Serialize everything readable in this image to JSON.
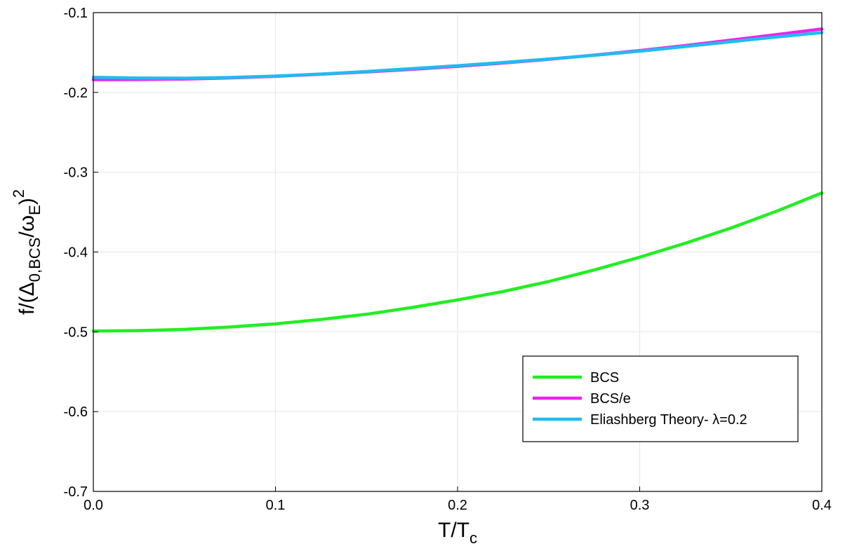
{
  "chart_data": {
    "type": "line",
    "xlabel": {
      "main": "T/T",
      "sub": "c"
    },
    "ylabel": {
      "prefix": "f/(",
      "delta": "Δ",
      "sub1": "0,BCS",
      "mid": "/ω",
      "sub2": "E",
      "close": ")",
      "sup": "2"
    },
    "xlim": [
      0.0,
      0.4
    ],
    "ylim": [
      -0.7,
      -0.1
    ],
    "xticks": [
      0.0,
      0.1,
      0.2,
      0.3,
      0.4
    ],
    "xtick_labels": [
      "0.0",
      "0.1",
      "0.2",
      "0.3",
      "0.4"
    ],
    "yticks": [
      -0.7,
      -0.6,
      -0.5,
      -0.4,
      -0.3,
      -0.2,
      -0.1
    ],
    "ytick_labels": [
      "-0.7",
      "-0.6",
      "-0.5",
      "-0.4",
      "-0.3",
      "-0.2",
      "-0.1"
    ],
    "grid": true,
    "legend_position": "lower-right",
    "series": [
      {
        "name": "BCS",
        "color": "#22ee22",
        "x": [
          0.0,
          0.025,
          0.05,
          0.075,
          0.1,
          0.125,
          0.15,
          0.175,
          0.2,
          0.225,
          0.25,
          0.275,
          0.3,
          0.325,
          0.35,
          0.375,
          0.4
        ],
        "y": [
          -0.499,
          -0.4985,
          -0.497,
          -0.494,
          -0.49,
          -0.4845,
          -0.478,
          -0.4695,
          -0.46,
          -0.4495,
          -0.437,
          -0.4225,
          -0.4065,
          -0.389,
          -0.37,
          -0.349,
          -0.326
        ]
      },
      {
        "name": "BCS/e",
        "color": "#ee22ee",
        "x": [
          0.0,
          0.025,
          0.05,
          0.075,
          0.1,
          0.125,
          0.15,
          0.175,
          0.2,
          0.225,
          0.25,
          0.275,
          0.3,
          0.325,
          0.35,
          0.375,
          0.4
        ],
        "y": [
          -0.184,
          -0.1838,
          -0.1832,
          -0.1818,
          -0.1798,
          -0.1772,
          -0.1743,
          -0.171,
          -0.1673,
          -0.1632,
          -0.1585,
          -0.1532,
          -0.1475,
          -0.1413,
          -0.1345,
          -0.1275,
          -0.1205
        ]
      },
      {
        "name": "Eliashberg Theory- λ=0.2",
        "color": "#22bbee",
        "x": [
          0.0,
          0.025,
          0.05,
          0.075,
          0.1,
          0.125,
          0.15,
          0.175,
          0.2,
          0.225,
          0.25,
          0.275,
          0.3,
          0.325,
          0.35,
          0.375,
          0.4
        ],
        "y": [
          -0.181,
          -0.182,
          -0.1822,
          -0.1813,
          -0.1795,
          -0.177,
          -0.1738,
          -0.1702,
          -0.1665,
          -0.1625,
          -0.1582,
          -0.1535,
          -0.1483,
          -0.1425,
          -0.1365,
          -0.1305,
          -0.125
        ]
      }
    ]
  }
}
